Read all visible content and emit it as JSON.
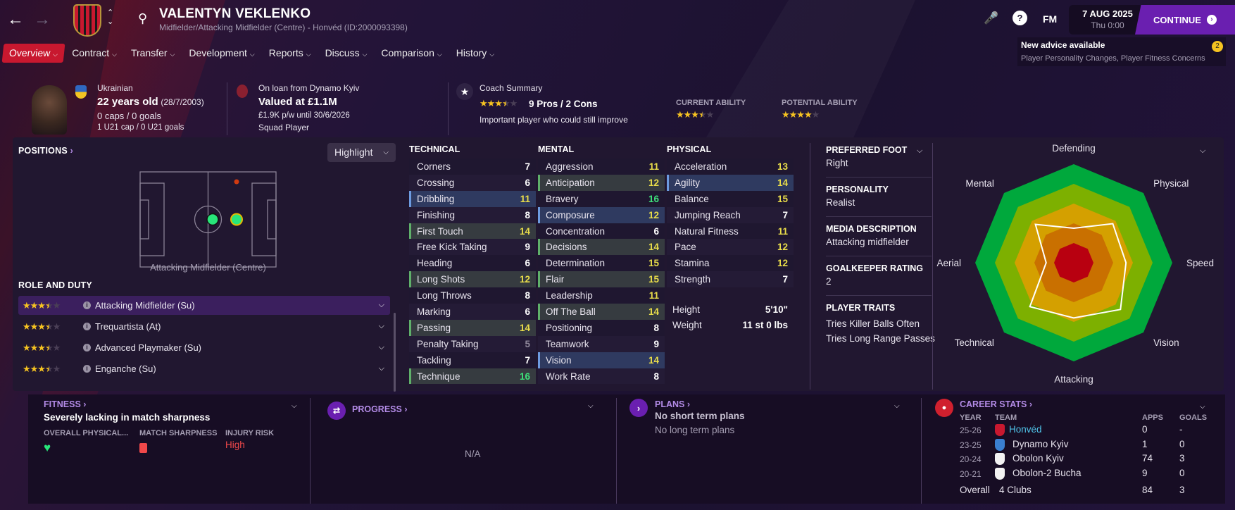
{
  "header": {
    "title": "VALENTYN VEKLENKO",
    "subtitle": "Midfielder/Attacking Midfielder (Centre) - Honvéd (ID:2000093398)",
    "fm_label": "FM",
    "date": "7 AUG 2025",
    "time": "Thu 0:00",
    "continue_label": "CONTINUE"
  },
  "advice": {
    "title": "New advice available",
    "detail": "Player Personality Changes, Player Fitness Concerns",
    "count": "2"
  },
  "tabs": [
    {
      "label": "Overview",
      "active": true
    },
    {
      "label": "Contract"
    },
    {
      "label": "Transfer"
    },
    {
      "label": "Development"
    },
    {
      "label": "Reports"
    },
    {
      "label": "Discuss"
    },
    {
      "label": "Comparison"
    },
    {
      "label": "History"
    }
  ],
  "info": {
    "nationality": "Ukrainian",
    "age": "22 years old",
    "dob": "(28/7/2003)",
    "caps": "0 caps / 0 goals",
    "u21": "1 U21 cap / 0 U21 goals",
    "loan": "On loan from Dynamo Kyiv",
    "value": "Valued at £1.1M",
    "wage": "£1.9K p/w until 30/6/2026",
    "status": "Squad Player",
    "coach_title": "Coach Summary",
    "coach_stars": 3.5,
    "pros_cons": "9 Pros / 2 Cons",
    "coach_note": "Important player who could still improve",
    "ca_label": "CURRENT ABILITY",
    "ca_stars": 3.5,
    "pa_label": "POTENTIAL ABILITY",
    "pa_stars": 4
  },
  "positions": {
    "title": "POSITIONS",
    "highlight_label": "Highlight",
    "position_name": "Attacking Midfielder (Centre)",
    "roles_title": "ROLE AND DUTY",
    "roles": [
      {
        "label": "Attacking Midfielder (Su)",
        "stars": 3.5,
        "selected": true
      },
      {
        "label": "Trequartista (At)",
        "stars": 3.5
      },
      {
        "label": "Advanced Playmaker (Su)",
        "stars": 3.5
      },
      {
        "label": "Enganche (Su)",
        "stars": 3.5
      }
    ]
  },
  "attributes": {
    "technical": {
      "title": "TECHNICAL",
      "items": [
        {
          "name": "Corners",
          "value": 7
        },
        {
          "name": "Crossing",
          "value": 6
        },
        {
          "name": "Dribbling",
          "value": 11,
          "hl": "blue"
        },
        {
          "name": "Finishing",
          "value": 8
        },
        {
          "name": "First Touch",
          "value": 14,
          "hl": "green"
        },
        {
          "name": "Free Kick Taking",
          "value": 9
        },
        {
          "name": "Heading",
          "value": 6
        },
        {
          "name": "Long Shots",
          "value": 12,
          "hl": "green"
        },
        {
          "name": "Long Throws",
          "value": 8
        },
        {
          "name": "Marking",
          "value": 6
        },
        {
          "name": "Passing",
          "value": 14,
          "hl": "green"
        },
        {
          "name": "Penalty Taking",
          "value": 5
        },
        {
          "name": "Tackling",
          "value": 7
        },
        {
          "name": "Technique",
          "value": 16,
          "hl": "green"
        }
      ]
    },
    "mental": {
      "title": "MENTAL",
      "items": [
        {
          "name": "Aggression",
          "value": 11
        },
        {
          "name": "Anticipation",
          "value": 12,
          "hl": "green"
        },
        {
          "name": "Bravery",
          "value": 16
        },
        {
          "name": "Composure",
          "value": 12,
          "hl": "blue"
        },
        {
          "name": "Concentration",
          "value": 6
        },
        {
          "name": "Decisions",
          "value": 14,
          "hl": "green"
        },
        {
          "name": "Determination",
          "value": 15
        },
        {
          "name": "Flair",
          "value": 15,
          "hl": "green"
        },
        {
          "name": "Leadership",
          "value": 11
        },
        {
          "name": "Off The Ball",
          "value": 14,
          "hl": "green"
        },
        {
          "name": "Positioning",
          "value": 8
        },
        {
          "name": "Teamwork",
          "value": 9
        },
        {
          "name": "Vision",
          "value": 14,
          "hl": "blue"
        },
        {
          "name": "Work Rate",
          "value": 8
        }
      ]
    },
    "physical": {
      "title": "PHYSICAL",
      "items": [
        {
          "name": "Acceleration",
          "value": 13
        },
        {
          "name": "Agility",
          "value": 14,
          "hl": "blue"
        },
        {
          "name": "Balance",
          "value": 15
        },
        {
          "name": "Jumping Reach",
          "value": 7
        },
        {
          "name": "Natural Fitness",
          "value": 11
        },
        {
          "name": "Pace",
          "value": 12
        },
        {
          "name": "Stamina",
          "value": 12
        },
        {
          "name": "Strength",
          "value": 7
        }
      ]
    },
    "height_label": "Height",
    "height": "5'10\"",
    "weight_label": "Weight",
    "weight": "11 st 0 lbs"
  },
  "details": {
    "foot_label": "PREFERRED FOOT",
    "foot": "Right",
    "personality_label": "PERSONALITY",
    "personality": "Realist",
    "media_label": "MEDIA DESCRIPTION",
    "media": "Attacking midfielder",
    "gk_label": "GOALKEEPER RATING",
    "gk": "2",
    "traits_label": "PLAYER TRAITS",
    "traits": [
      "Tries Killer Balls Often",
      "Tries Long Range Passes"
    ]
  },
  "chart_data": {
    "type": "radar",
    "axes": [
      "Defending",
      "Physical",
      "Speed",
      "Vision",
      "Attacking",
      "Technical",
      "Aerial",
      "Mental"
    ],
    "values": [
      35,
      56,
      53,
      67,
      56,
      63,
      28,
      55
    ],
    "range": [
      0,
      100
    ],
    "bands": [
      "#b80010",
      "#c97000",
      "#d4a000",
      "#7db000",
      "#00a83c"
    ]
  },
  "fitness": {
    "title": "FITNESS",
    "summary": "Severely lacking in match sharpness",
    "col1": "OVERALL PHYSICAL...",
    "col2": "MATCH SHARPNESS",
    "col3": "INJURY RISK",
    "injury": "High"
  },
  "progress": {
    "title": "PROGRESS",
    "value": "N/A"
  },
  "plans": {
    "title": "PLANS",
    "short": "No short term plans",
    "long": "No long term plans"
  },
  "career": {
    "title": "CAREER STATS",
    "headers": [
      "YEAR",
      "TEAM",
      "APPS",
      "GOALS"
    ],
    "rows": [
      {
        "year": "25-26",
        "team": "Honvéd",
        "apps": "0",
        "goals": "-",
        "badge": "#c8182f"
      },
      {
        "year": "23-25",
        "team": "Dynamo Kyiv",
        "apps": "1",
        "goals": "0",
        "badge": "#3a7fd0"
      },
      {
        "year": "20-24",
        "team": "Obolon Kyiv",
        "apps": "74",
        "goals": "3",
        "badge": "#f2f2f2"
      },
      {
        "year": "20-21",
        "team": "Obolon-2 Bucha",
        "apps": "9",
        "goals": "0",
        "badge": "#f2f2f2"
      }
    ],
    "overall_label": "Overall",
    "overall_clubs": "4 Clubs",
    "overall_apps": "84",
    "overall_goals": "3"
  }
}
